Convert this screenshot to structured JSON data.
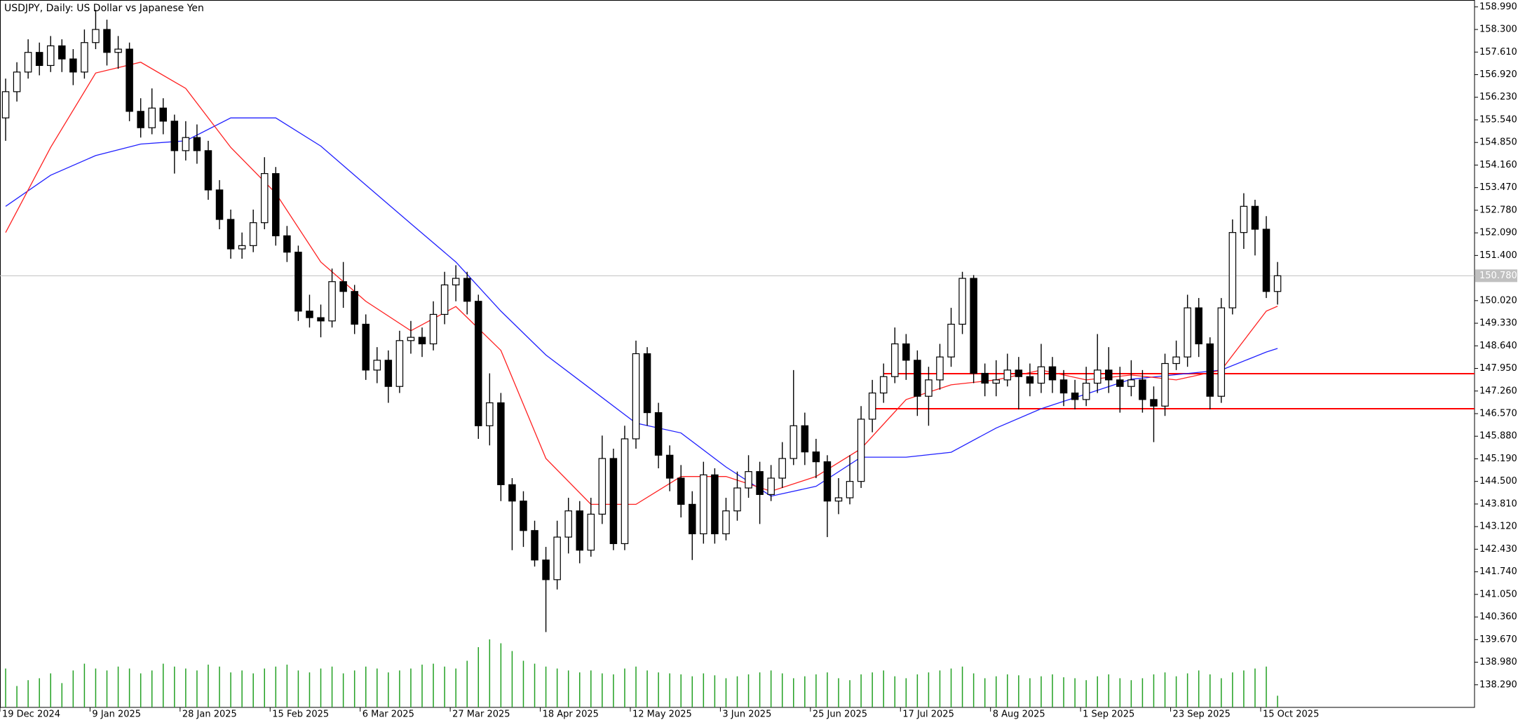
{
  "chart_data": {
    "type": "candlestick",
    "title": "USDJPY, Daily:  US Dollar vs Japanese Yen",
    "up_color": "#ffffff",
    "down_color": "#000000",
    "outline_color": "#000000",
    "open": [
      155.6,
      156.4,
      157.0,
      157.6,
      157.2,
      157.8,
      157.4,
      157.0,
      157.9,
      158.3,
      157.6,
      157.7,
      155.8,
      155.3,
      155.9,
      155.5,
      154.6,
      155.0,
      154.6,
      153.4,
      152.5,
      151.6,
      151.7,
      152.4,
      153.9,
      152.0,
      151.5,
      149.7,
      149.5,
      149.4,
      150.6,
      150.3,
      149.3,
      147.9,
      148.2,
      147.4,
      148.8,
      148.9,
      148.7,
      149.6,
      150.5,
      150.7,
      150.0,
      146.2,
      146.9,
      144.4,
      143.9,
      143.0,
      142.1,
      141.5,
      142.8,
      143.6,
      142.4,
      143.5,
      145.2,
      142.6,
      145.8,
      148.4,
      146.6,
      145.3,
      144.6,
      143.8,
      142.9,
      144.7,
      142.9,
      143.6,
      144.3,
      144.8,
      144.1,
      144.6,
      145.2,
      146.2,
      145.4,
      145.1,
      143.9,
      144.0,
      144.5,
      146.4,
      147.2,
      147.7,
      148.7,
      148.2,
      147.1,
      147.6,
      148.3,
      149.3,
      150.7,
      147.8,
      147.5,
      147.6,
      147.9,
      147.7,
      147.5,
      148.0,
      147.6,
      147.2,
      147.0,
      147.5,
      147.9,
      147.6,
      147.4,
      147.6,
      147.0,
      146.8,
      148.1,
      148.3,
      149.8,
      148.7,
      147.1,
      149.8,
      152.1,
      152.9,
      152.2,
      150.3
    ],
    "high": [
      156.8,
      157.3,
      158.0,
      157.9,
      158.1,
      158.0,
      157.7,
      158.3,
      158.9,
      158.6,
      158.1,
      157.9,
      156.2,
      156.5,
      156.2,
      155.7,
      155.5,
      155.4,
      154.9,
      153.7,
      152.8,
      152.1,
      152.8,
      154.4,
      154.1,
      152.3,
      151.7,
      150.2,
      149.9,
      151.0,
      151.2,
      150.5,
      149.6,
      148.6,
      148.5,
      149.1,
      149.4,
      149.2,
      150.0,
      150.9,
      151.1,
      150.9,
      150.2,
      147.8,
      147.2,
      144.6,
      144.2,
      143.3,
      142.5,
      143.3,
      144.0,
      143.9,
      144.0,
      145.9,
      145.5,
      146.2,
      148.8,
      148.6,
      146.9,
      145.6,
      145.0,
      144.2,
      145.1,
      144.9,
      144.0,
      144.8,
      145.3,
      145.1,
      145.0,
      145.7,
      147.9,
      146.6,
      145.8,
      145.3,
      144.6,
      145.3,
      146.8,
      147.6,
      148.1,
      149.2,
      149.0,
      148.5,
      148.0,
      148.7,
      149.8,
      150.9,
      150.8,
      148.1,
      148.2,
      148.4,
      148.3,
      148.1,
      148.7,
      148.3,
      147.9,
      147.6,
      148.0,
      149.0,
      148.6,
      148.0,
      148.2,
      147.9,
      147.4,
      148.4,
      148.8,
      150.2,
      150.1,
      148.9,
      150.1,
      152.5,
      153.3,
      153.1,
      152.6,
      151.2
    ],
    "low": [
      154.9,
      156.1,
      156.8,
      156.9,
      157.0,
      157.0,
      156.6,
      156.8,
      157.7,
      157.2,
      157.1,
      155.5,
      155.0,
      155.1,
      155.1,
      153.9,
      154.3,
      154.2,
      153.1,
      152.2,
      151.3,
      151.3,
      151.5,
      152.2,
      151.7,
      151.2,
      149.4,
      149.2,
      148.9,
      149.2,
      149.8,
      149.0,
      147.6,
      147.5,
      146.9,
      147.2,
      148.4,
      148.3,
      148.5,
      149.3,
      150.0,
      149.6,
      145.8,
      145.6,
      143.9,
      142.4,
      142.5,
      141.9,
      139.9,
      141.2,
      142.3,
      142.0,
      142.2,
      143.2,
      142.4,
      142.4,
      145.5,
      146.2,
      144.9,
      144.2,
      143.4,
      142.1,
      142.6,
      142.6,
      142.7,
      143.3,
      144.0,
      143.2,
      143.9,
      144.3,
      145.0,
      145.0,
      144.6,
      142.8,
      143.5,
      143.8,
      144.3,
      146.0,
      146.9,
      147.5,
      147.6,
      146.5,
      146.2,
      147.3,
      148.0,
      149.0,
      147.5,
      147.1,
      147.1,
      147.4,
      146.7,
      147.1,
      147.2,
      147.2,
      146.8,
      146.7,
      146.8,
      147.2,
      147.2,
      146.6,
      147.1,
      146.6,
      145.7,
      146.5,
      147.9,
      148.0,
      148.3,
      146.7,
      146.9,
      149.6,
      151.6,
      151.4,
      150.1,
      149.9
    ],
    "close": [
      156.4,
      157.0,
      157.6,
      157.2,
      157.8,
      157.4,
      157.0,
      157.9,
      158.3,
      157.6,
      157.7,
      155.8,
      155.3,
      155.9,
      155.5,
      154.6,
      155.0,
      154.6,
      153.4,
      152.5,
      151.6,
      151.7,
      152.4,
      153.9,
      152.0,
      151.5,
      149.7,
      149.5,
      149.4,
      150.6,
      150.3,
      149.3,
      147.9,
      148.2,
      147.4,
      148.8,
      148.9,
      148.7,
      149.6,
      150.5,
      150.7,
      150.0,
      146.2,
      146.9,
      144.4,
      143.9,
      143.0,
      142.1,
      141.5,
      142.8,
      143.6,
      142.4,
      143.5,
      145.2,
      142.6,
      145.8,
      148.4,
      146.6,
      145.3,
      144.6,
      143.8,
      142.9,
      144.7,
      142.9,
      143.6,
      144.3,
      144.8,
      144.1,
      144.6,
      145.2,
      146.2,
      145.4,
      145.1,
      143.9,
      144.0,
      144.5,
      146.4,
      147.2,
      147.7,
      148.7,
      148.2,
      147.1,
      147.6,
      148.3,
      149.3,
      150.7,
      147.8,
      147.5,
      147.6,
      147.9,
      147.7,
      147.5,
      148.0,
      147.6,
      147.2,
      147.0,
      147.5,
      147.9,
      147.6,
      147.4,
      147.6,
      147.0,
      146.8,
      148.1,
      148.3,
      149.8,
      148.7,
      147.1,
      149.8,
      152.1,
      152.9,
      152.2,
      150.3,
      150.78
    ],
    "volume_color": "#22a022",
    "volume": [
      40,
      22,
      28,
      30,
      35,
      25,
      38,
      45,
      40,
      38,
      42,
      40,
      35,
      38,
      45,
      42,
      40,
      38,
      44,
      42,
      36,
      38,
      35,
      40,
      42,
      44,
      38,
      36,
      40,
      42,
      35,
      38,
      42,
      40,
      36,
      38,
      40,
      44,
      45,
      42,
      40,
      48,
      62,
      70,
      66,
      58,
      48,
      45,
      42,
      40,
      38,
      36,
      38,
      35,
      34,
      40,
      42,
      38,
      36,
      35,
      34,
      32,
      35,
      33,
      30,
      32,
      34,
      36,
      38,
      35,
      30,
      32,
      34,
      36,
      30,
      28,
      34,
      36,
      38,
      32,
      30,
      34,
      36,
      38,
      40,
      42,
      35,
      30,
      32,
      34,
      33,
      30,
      32,
      34,
      31,
      30,
      28,
      32,
      34,
      30,
      28,
      30,
      34,
      36,
      32,
      35,
      38,
      34,
      30,
      36,
      38,
      40,
      42,
      12
    ],
    "ma_fast": {
      "color": "#ff2020",
      "x": [
        0,
        4,
        8,
        12,
        16,
        20,
        24,
        28,
        32,
        36,
        40,
        44,
        48,
        52,
        56,
        60,
        64,
        68,
        72,
        76,
        80,
        84,
        88,
        92,
        96,
        100,
        104,
        108,
        112,
        113
      ],
      "values": [
        152.1,
        154.7,
        156.97,
        157.3,
        156.5,
        154.7,
        153.3,
        151.2,
        150.0,
        149.1,
        149.84,
        148.5,
        145.2,
        143.8,
        143.8,
        144.65,
        144.65,
        144.2,
        144.65,
        145.5,
        147.0,
        147.45,
        147.6,
        147.9,
        147.6,
        147.75,
        147.6,
        147.9,
        149.7,
        149.85
      ]
    },
    "ma_slow": {
      "color": "#2020ff",
      "x": [
        0,
        4,
        8,
        12,
        16,
        20,
        24,
        28,
        32,
        36,
        40,
        44,
        48,
        52,
        56,
        60,
        64,
        68,
        72,
        76,
        80,
        84,
        88,
        92,
        96,
        100,
        104,
        108,
        112,
        113
      ],
      "values": [
        152.9,
        153.85,
        154.45,
        154.8,
        154.9,
        155.6,
        155.6,
        154.74,
        153.55,
        152.37,
        151.2,
        149.7,
        148.36,
        147.32,
        146.28,
        145.98,
        144.94,
        144.05,
        144.35,
        145.24,
        145.24,
        145.39,
        146.13,
        146.72,
        147.17,
        147.62,
        147.76,
        147.9,
        148.45,
        148.56
      ]
    },
    "levels": {
      "color": "#ff0000",
      "values": [
        147.79,
        146.72
      ],
      "start": [
        78,
        77
      ]
    },
    "current_price": {
      "value": 150.78,
      "label": "150.780",
      "color": "#c0c0c0"
    },
    "xlim": [
      -0.5,
      130.5
    ],
    "ylim": [
      137.6,
      159.2
    ],
    "xticks": [
      {
        "value": 0,
        "label": "19 Dec 2024"
      },
      {
        "value": 8,
        "label": "9 Jan 2025"
      },
      {
        "value": 16,
        "label": "28 Jan 2025"
      },
      {
        "value": 24,
        "label": "15 Feb 2025"
      },
      {
        "value": 32,
        "label": "6 Mar 2025"
      },
      {
        "value": 40,
        "label": "27 Mar 2025"
      },
      {
        "value": 48,
        "label": "18 Apr 2025"
      },
      {
        "value": 56,
        "label": "12 May 2025"
      },
      {
        "value": 64,
        "label": "3 Jun 2025"
      },
      {
        "value": 72,
        "label": "25 Jun 2025"
      },
      {
        "value": 80,
        "label": "17 Jul 2025"
      },
      {
        "value": 88,
        "label": "8 Aug 2025"
      },
      {
        "value": 96,
        "label": "1 Sep 2025"
      },
      {
        "value": 104,
        "label": "23 Sep 2025"
      },
      {
        "value": 112,
        "label": "15 Oct 2025"
      }
    ],
    "yticks": [
      {
        "value": 158.99,
        "label": "158.990"
      },
      {
        "value": 158.3,
        "label": "158.300"
      },
      {
        "value": 157.61,
        "label": "157.610"
      },
      {
        "value": 156.92,
        "label": "156.920"
      },
      {
        "value": 156.23,
        "label": "156.230"
      },
      {
        "value": 155.54,
        "label": "155.540"
      },
      {
        "value": 154.85,
        "label": "154.850"
      },
      {
        "value": 154.16,
        "label": "154.160"
      },
      {
        "value": 153.47,
        "label": "153.470"
      },
      {
        "value": 152.78,
        "label": "152.780"
      },
      {
        "value": 152.09,
        "label": "152.090"
      },
      {
        "value": 151.4,
        "label": "151.400"
      },
      {
        "value": 150.02,
        "label": "150.020"
      },
      {
        "value": 149.33,
        "label": "149.330"
      },
      {
        "value": 148.64,
        "label": "148.640"
      },
      {
        "value": 147.95,
        "label": "147.950"
      },
      {
        "value": 147.26,
        "label": "147.260"
      },
      {
        "value": 146.57,
        "label": "146.570"
      },
      {
        "value": 145.88,
        "label": "145.880"
      },
      {
        "value": 145.19,
        "label": "145.190"
      },
      {
        "value": 144.5,
        "label": "144.500"
      },
      {
        "value": 143.81,
        "label": "143.810"
      },
      {
        "value": 143.12,
        "label": "143.120"
      },
      {
        "value": 142.43,
        "label": "142.430"
      },
      {
        "value": 141.74,
        "label": "141.740"
      },
      {
        "value": 141.05,
        "label": "141.050"
      },
      {
        "value": 140.36,
        "label": "140.360"
      },
      {
        "value": 139.67,
        "label": "139.670"
      },
      {
        "value": 138.98,
        "label": "138.980"
      },
      {
        "value": 138.29,
        "label": "138.290"
      }
    ]
  }
}
